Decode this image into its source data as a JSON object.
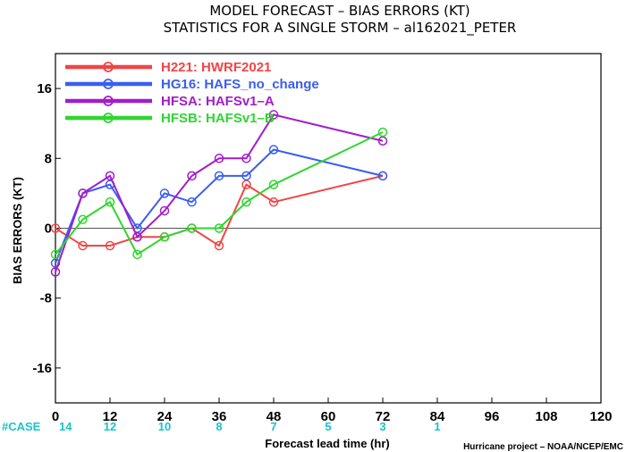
{
  "title_line1": "MODEL FORECAST – BIAS ERRORS (KT)",
  "title_line2": "STATISTICS FOR A SINGLE STORM – al162021_PETER",
  "credit": "Hurricane project – NOAA/NCEP/EMC",
  "case_label": "#CASE",
  "case_values": [
    {
      "x": 0,
      "label": "14"
    },
    {
      "x": 12,
      "label": "12"
    },
    {
      "x": 24,
      "label": "10"
    },
    {
      "x": 36,
      "label": "8"
    },
    {
      "x": 48,
      "label": "7"
    },
    {
      "x": 60,
      "label": "5"
    },
    {
      "x": 72,
      "label": "3"
    },
    {
      "x": 84,
      "label": "1"
    }
  ],
  "chart_data": {
    "type": "line",
    "xlabel": "Forecast lead time (hr)",
    "ylabel": "BIAS ERRORS (KT)",
    "xlim": [
      0,
      120
    ],
    "ylim": [
      -20,
      20
    ],
    "xticks": [
      0,
      12,
      24,
      36,
      48,
      60,
      72,
      84,
      96,
      108,
      120
    ],
    "yticks": [
      -16,
      -8,
      0,
      8,
      16
    ],
    "zero_line": true,
    "grid": false,
    "legend_position": "top-left",
    "series": [
      {
        "name": "H221: HWRF2021",
        "color": "#f04545",
        "x": [
          0,
          6,
          12,
          18,
          24,
          30,
          36,
          42,
          48,
          72
        ],
        "y": [
          0,
          -2,
          -2,
          -1,
          -1,
          0,
          -2,
          5,
          3,
          6
        ]
      },
      {
        "name": "HG16: HAFS_no_change",
        "color": "#3a5ef0",
        "x": [
          0,
          6,
          12,
          18,
          24,
          30,
          36,
          42,
          48,
          72
        ],
        "y": [
          -4,
          4,
          5,
          0,
          4,
          3,
          6,
          6,
          9,
          6
        ]
      },
      {
        "name": "HFSA: HAFSv1–A",
        "color": "#a21dc8",
        "x": [
          0,
          6,
          12,
          18,
          24,
          30,
          36,
          42,
          48,
          72
        ],
        "y": [
          -5,
          4,
          6,
          -1,
          2,
          6,
          8,
          8,
          13,
          10
        ]
      },
      {
        "name": "HFSB: HAFSv1–B",
        "color": "#2fd62f",
        "x": [
          0,
          6,
          12,
          18,
          24,
          30,
          36,
          42,
          48,
          72
        ],
        "y": [
          -3,
          1,
          3,
          -3,
          -1,
          0,
          0,
          3,
          5,
          11
        ]
      }
    ]
  }
}
